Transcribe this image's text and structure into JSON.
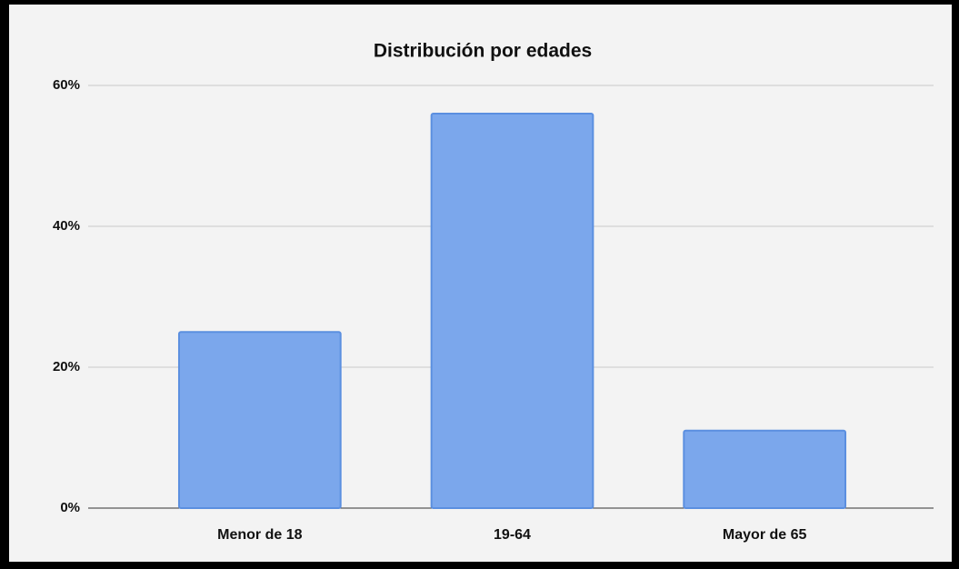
{
  "chart_data": {
    "type": "bar",
    "title": "Distribución por edades",
    "categories": [
      "Menor de 18",
      "19-64",
      "Mayor de 65"
    ],
    "values": [
      25,
      56,
      11
    ],
    "color": "#7ba7ec",
    "ylim": [
      0,
      60
    ],
    "yticks": [
      {
        "value": 0,
        "label": "0%"
      },
      {
        "value": 20,
        "label": "20%"
      },
      {
        "value": 40,
        "label": "40%"
      },
      {
        "value": 60,
        "label": "60%"
      }
    ],
    "grid": true
  }
}
